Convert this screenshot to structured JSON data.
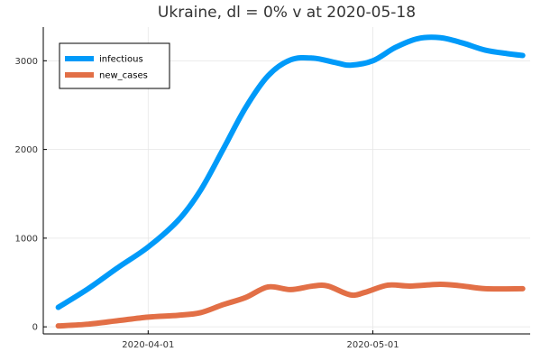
{
  "chart_data": {
    "type": "line",
    "title": "Ukraine,  dl = 0% v at 2020-05-18",
    "xlabel": "",
    "ylabel": "",
    "x_axis": {
      "type": "date",
      "range": [
        "2020-03-18",
        "2020-05-22"
      ],
      "ticks": [
        {
          "value": "2020-04-01",
          "label": "2020-04-01"
        },
        {
          "value": "2020-05-01",
          "label": "2020-05-01"
        }
      ]
    },
    "y_axis": {
      "range": [
        -80,
        3380
      ],
      "ticks": [
        {
          "value": 0,
          "label": "0"
        },
        {
          "value": 1000,
          "label": "1000"
        },
        {
          "value": 2000,
          "label": "2000"
        },
        {
          "value": 3000,
          "label": "3000"
        }
      ]
    },
    "grid": true,
    "legend": {
      "position": "top-left"
    },
    "series": [
      {
        "name": "infectious",
        "color": "#009af9",
        "points": [
          [
            "2020-03-20",
            220
          ],
          [
            "2020-03-24",
            430
          ],
          [
            "2020-03-28",
            670
          ],
          [
            "2020-04-01",
            900
          ],
          [
            "2020-04-05",
            1200
          ],
          [
            "2020-04-08",
            1540
          ],
          [
            "2020-04-11",
            2000
          ],
          [
            "2020-04-14",
            2470
          ],
          [
            "2020-04-17",
            2830
          ],
          [
            "2020-04-20",
            3010
          ],
          [
            "2020-04-23",
            3030
          ],
          [
            "2020-04-26",
            2980
          ],
          [
            "2020-04-28",
            2950
          ],
          [
            "2020-05-01",
            3000
          ],
          [
            "2020-05-04",
            3150
          ],
          [
            "2020-05-07",
            3250
          ],
          [
            "2020-05-10",
            3260
          ],
          [
            "2020-05-13",
            3200
          ],
          [
            "2020-05-16",
            3120
          ],
          [
            "2020-05-19",
            3080
          ],
          [
            "2020-05-21",
            3060
          ]
        ]
      },
      {
        "name": "new_cases",
        "color": "#e26f46",
        "points": [
          [
            "2020-03-20",
            10
          ],
          [
            "2020-03-24",
            30
          ],
          [
            "2020-03-28",
            70
          ],
          [
            "2020-04-01",
            110
          ],
          [
            "2020-04-05",
            130
          ],
          [
            "2020-04-08",
            160
          ],
          [
            "2020-04-11",
            250
          ],
          [
            "2020-04-14",
            330
          ],
          [
            "2020-04-17",
            450
          ],
          [
            "2020-04-20",
            420
          ],
          [
            "2020-04-23",
            460
          ],
          [
            "2020-04-25",
            460
          ],
          [
            "2020-04-28",
            360
          ],
          [
            "2020-04-30",
            390
          ],
          [
            "2020-05-03",
            470
          ],
          [
            "2020-05-06",
            460
          ],
          [
            "2020-05-10",
            480
          ],
          [
            "2020-05-13",
            460
          ],
          [
            "2020-05-16",
            430
          ],
          [
            "2020-05-21",
            430
          ]
        ]
      }
    ]
  }
}
